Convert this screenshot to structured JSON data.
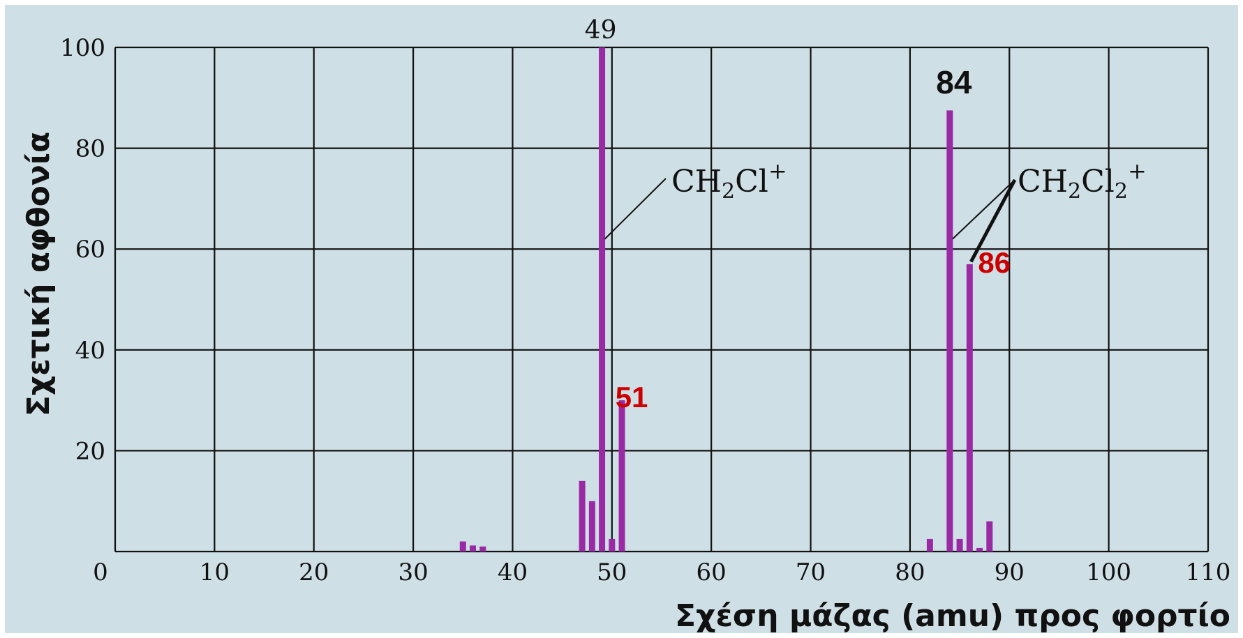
{
  "chart_data": {
    "type": "bar",
    "xlabel": "Σχέση μάζας (amu) προς φορτίο",
    "ylabel": "Σχετική αφθονία",
    "xlim": [
      0,
      110
    ],
    "ylim": [
      0,
      100
    ],
    "x_ticks": [
      0,
      10,
      20,
      30,
      40,
      50,
      60,
      70,
      80,
      90,
      100,
      110
    ],
    "y_ticks": [
      20,
      40,
      60,
      80,
      100
    ],
    "grid": true,
    "background_color": "#cfdfe6",
    "bar_color": "#9a2aa4",
    "grid_color": "#111111",
    "bars": [
      {
        "x": 35,
        "y": 2
      },
      {
        "x": 36,
        "y": 1.2
      },
      {
        "x": 37,
        "y": 1
      },
      {
        "x": 47,
        "y": 14
      },
      {
        "x": 48,
        "y": 10
      },
      {
        "x": 49,
        "y": 100
      },
      {
        "x": 50,
        "y": 2.5
      },
      {
        "x": 51,
        "y": 30
      },
      {
        "x": 82,
        "y": 2.5
      },
      {
        "x": 84,
        "y": 87.5
      },
      {
        "x": 85,
        "y": 2.5
      },
      {
        "x": 86,
        "y": 57
      },
      {
        "x": 87,
        "y": 0.7
      },
      {
        "x": 88,
        "y": 6
      }
    ],
    "peak_labels": [
      {
        "text": "49",
        "x": 49,
        "color": "#111111",
        "style": "serif"
      },
      {
        "text": "51",
        "x": 51,
        "color": "#cc0000",
        "style": "bold"
      },
      {
        "text": "84",
        "x": 84,
        "color": "#111111",
        "style": "bold"
      },
      {
        "text": "86",
        "x": 86,
        "color": "#cc0000",
        "style": "bold"
      }
    ],
    "annotations": [
      {
        "formula": [
          "CH",
          "2",
          "Cl",
          "+"
        ],
        "scripts": [
          "",
          "sub",
          "",
          "sup"
        ]
      },
      {
        "formula": [
          "CH",
          "2",
          "Cl",
          "2",
          "+"
        ],
        "scripts": [
          "",
          "sub",
          "",
          "sub",
          "sup"
        ]
      }
    ]
  }
}
